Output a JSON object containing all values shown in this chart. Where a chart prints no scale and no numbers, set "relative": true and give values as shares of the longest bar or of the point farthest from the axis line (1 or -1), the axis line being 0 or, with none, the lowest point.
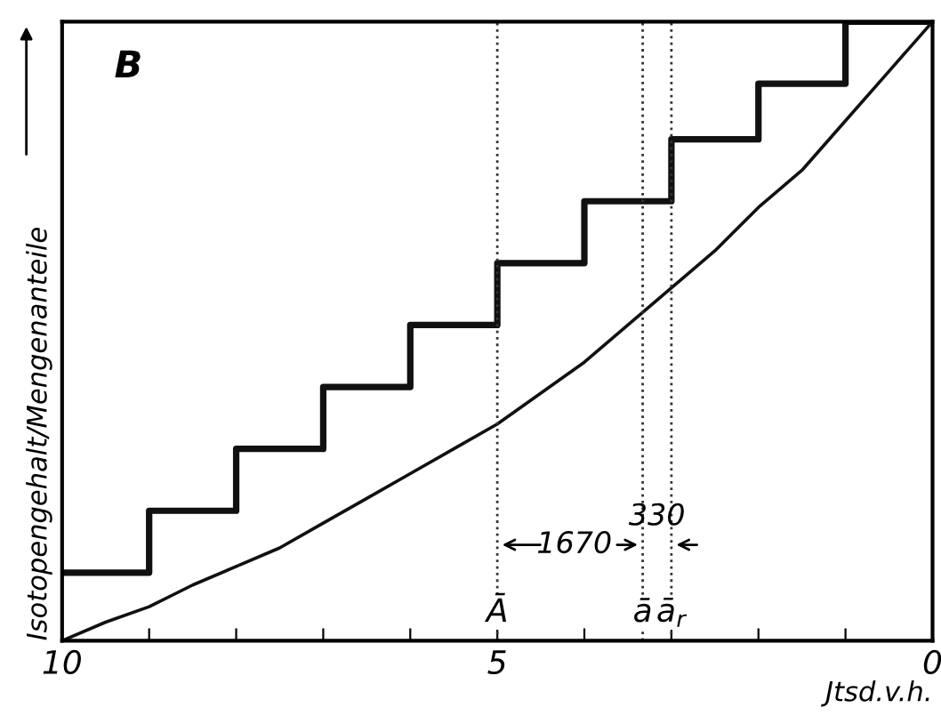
{
  "chart_data": {
    "type": "line",
    "relative": true,
    "xlabel": "Jtsd.v.h.",
    "ylabel": "Isotopengehalt/Mengenanteile",
    "xlim": [
      10,
      0
    ],
    "xticks": [
      10,
      {
        "value": 9,
        "label": null
      },
      {
        "value": 8,
        "label": null
      },
      {
        "value": 7,
        "label": null
      },
      {
        "value": 6,
        "label": null
      },
      5,
      {
        "value": 4,
        "label": null
      },
      {
        "value": 3,
        "label": null
      },
      {
        "value": 2,
        "label": null
      },
      {
        "value": 1,
        "label": null
      },
      0
    ],
    "grid": false,
    "tick_labels": "x",
    "series": [
      {
        "type": "step",
        "color": "#111111",
        "x": [
          10,
          9,
          8,
          7,
          6,
          5,
          4,
          3,
          2,
          1,
          0
        ],
        "values": [
          0.11,
          0.21,
          0.31,
          0.41,
          0.51,
          0.61,
          0.71,
          0.81,
          0.9,
          1.0,
          1.0
        ]
      },
      {
        "color": "#111111",
        "x": [
          10,
          9.5,
          9,
          8.5,
          8,
          7.5,
          7,
          6.5,
          6,
          5.5,
          5,
          4.5,
          4,
          3.5,
          3,
          2.5,
          2,
          1.5,
          1,
          0.5,
          0
        ],
        "values": [
          0,
          0.03,
          0.055,
          0.09,
          0.12,
          0.15,
          0.19,
          0.23,
          0.27,
          0.31,
          0.35,
          0.4,
          0.45,
          0.51,
          0.57,
          0.63,
          0.7,
          0.76,
          0.84,
          0.92,
          1.0
        ]
      }
    ],
    "ref_lines": [
      {
        "axis": "x",
        "value": 5,
        "label": "Ā",
        "line_style": "dotted",
        "color": "#333333"
      },
      {
        "axis": "x",
        "value": 3.33,
        "label": "ā",
        "line_style": "dotted",
        "color": "#333333"
      },
      {
        "axis": "x",
        "value": 3.0,
        "label": "ā$_{r}$",
        "line_style": "dotted",
        "color": "#333333"
      }
    ],
    "annotations": [
      "B",
      "1670",
      "330"
    ]
  }
}
